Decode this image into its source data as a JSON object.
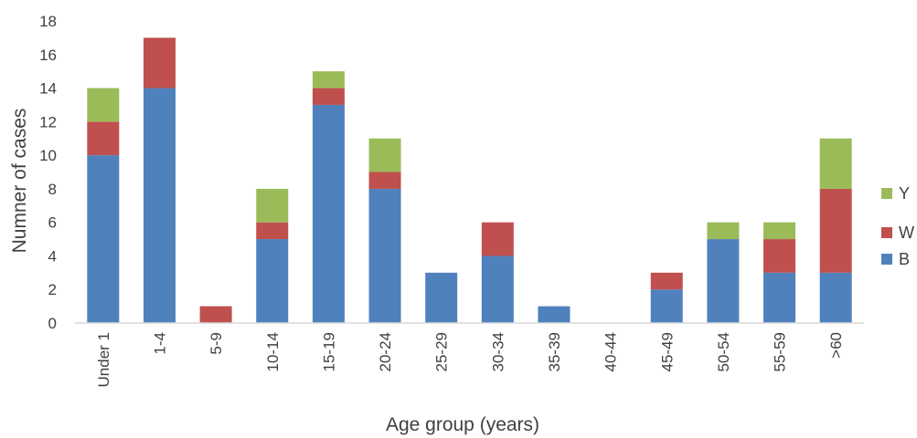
{
  "chart_data": {
    "type": "bar",
    "stacked": true,
    "categories": [
      "Under 1",
      "1-4",
      "5-9",
      "10-14",
      "15-19",
      "20-24",
      "25-29",
      "30-34",
      "35-39",
      "40-44",
      "45-49",
      "50-54",
      "55-59",
      ">60"
    ],
    "series": [
      {
        "name": "B",
        "color": "#4f81bd",
        "values": [
          10,
          14,
          0,
          5,
          13,
          8,
          3,
          4,
          1,
          0,
          2,
          5,
          3,
          3
        ]
      },
      {
        "name": "W",
        "color": "#c0504d",
        "values": [
          2,
          3,
          1,
          1,
          1,
          1,
          0,
          2,
          0,
          0,
          1,
          0,
          2,
          5
        ]
      },
      {
        "name": "Y",
        "color": "#9bbb59",
        "values": [
          2,
          0,
          0,
          2,
          1,
          2,
          0,
          0,
          0,
          0,
          0,
          1,
          1,
          3
        ]
      }
    ],
    "xlabel": "Age group (years)",
    "ylabel": "Numner of cases",
    "ylim": [
      0,
      18
    ],
    "yticks": [
      0,
      2,
      4,
      6,
      8,
      10,
      12,
      14,
      16,
      18
    ],
    "grid": false,
    "legend_position": "right",
    "legend_order": [
      "Y",
      "W",
      "B"
    ]
  }
}
